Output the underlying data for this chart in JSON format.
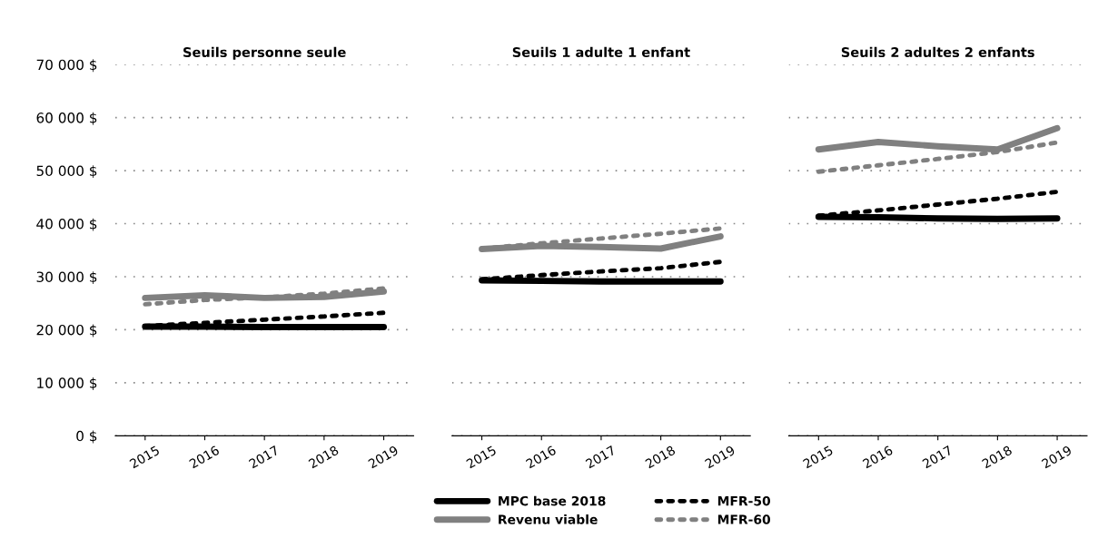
{
  "chart_data": [
    {
      "type": "line",
      "title": "Seuils personne seule",
      "categories": [
        "2015",
        "2016",
        "2017",
        "2018",
        "2019"
      ],
      "ylim": [
        0,
        70000
      ],
      "yticks": [
        {
          "value": 0,
          "label": "0 $"
        },
        {
          "value": 10000,
          "label": "10 000 $"
        },
        {
          "value": 20000,
          "label": "20 000 $"
        },
        {
          "value": 30000,
          "label": "30 000 $"
        },
        {
          "value": 40000,
          "label": "40 000 $"
        },
        {
          "value": 50000,
          "label": "50 000 $"
        },
        {
          "value": 60000,
          "label": "60 000 $"
        },
        {
          "value": 70000,
          "label": "70 000 $"
        }
      ],
      "grid": "y",
      "series": [
        {
          "color": "#000000",
          "line_style": "solid",
          "values": [
            20600,
            20600,
            20500,
            20500,
            20500
          ]
        },
        {
          "color": "#808080",
          "line_style": "solid",
          "values": [
            26000,
            26500,
            26000,
            26200,
            27200
          ]
        },
        {
          "color": "#000000",
          "line_style": "dotted",
          "values": [
            20700,
            21300,
            21900,
            22500,
            23200
          ]
        },
        {
          "color": "#808080",
          "line_style": "dotted",
          "values": [
            24800,
            25600,
            26100,
            26800,
            27800
          ]
        }
      ]
    },
    {
      "type": "line",
      "title": "Seuils 1 adulte 1 enfant",
      "categories": [
        "2015",
        "2016",
        "2017",
        "2018",
        "2019"
      ],
      "ylim": [
        0,
        70000
      ],
      "yticks": [
        0,
        10000,
        20000,
        30000,
        40000,
        50000,
        60000,
        70000
      ],
      "tick_labels": "x",
      "grid": "y",
      "legend": "bottom",
      "series": [
        {
          "name": "MPC base 2018",
          "color": "#000000",
          "line_style": "solid",
          "values": [
            29300,
            29200,
            29100,
            29100,
            29100
          ]
        },
        {
          "name": "Revenu viable",
          "color": "#808080",
          "line_style": "solid",
          "values": [
            35200,
            35800,
            35600,
            35300,
            37600
          ]
        },
        {
          "name": "MFR-50",
          "color": "#000000",
          "line_style": "dotted",
          "values": [
            29500,
            30300,
            31000,
            31600,
            32800
          ]
        },
        {
          "name": "MFR-60",
          "color": "#808080",
          "line_style": "dotted",
          "values": [
            35300,
            36300,
            37200,
            38100,
            39100
          ]
        }
      ]
    },
    {
      "type": "line",
      "title": "Seuils 2 adultes 2 enfants",
      "categories": [
        "2015",
        "2016",
        "2017",
        "2018",
        "2019"
      ],
      "ylim": [
        0,
        70000
      ],
      "yticks": [
        0,
        10000,
        20000,
        30000,
        40000,
        50000,
        60000,
        70000
      ],
      "tick_labels": "x",
      "grid": "y",
      "series": [
        {
          "color": "#000000",
          "line_style": "solid",
          "values": [
            41300,
            41200,
            41000,
            40900,
            41000
          ]
        },
        {
          "color": "#808080",
          "line_style": "solid",
          "values": [
            54000,
            55400,
            54600,
            54000,
            58000
          ]
        },
        {
          "color": "#000000",
          "line_style": "dotted",
          "values": [
            41500,
            42500,
            43600,
            44700,
            46000
          ]
        },
        {
          "color": "#808080",
          "line_style": "dotted",
          "values": [
            49800,
            51000,
            52200,
            53500,
            55300
          ]
        }
      ]
    }
  ]
}
